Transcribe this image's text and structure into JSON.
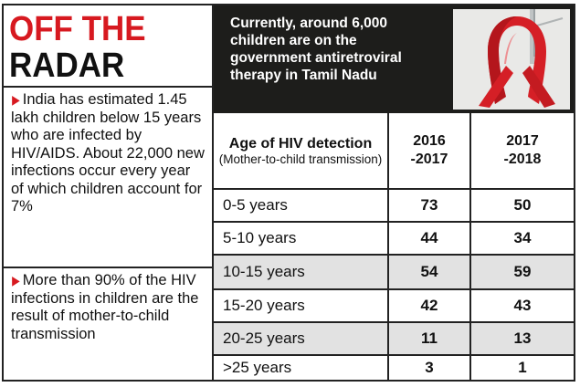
{
  "title": {
    "line1": "OFF THE",
    "line2": "RADAR"
  },
  "facts": [
    "India has estimated 1.45 lakh children below 15 years who are infected by HIV/AIDS. About 22,000 new infections occur every year of which children account for 7%",
    "More than 90% of the HIV infections in children are the result of mother-to-child transmission"
  ],
  "header": {
    "text": "Currently, around 6,000 children are on the government antiretroviral therapy in Tamil Nadu",
    "image_icon": "red-ribbon-icon"
  },
  "colors": {
    "accent": "#d71920",
    "header_bg": "#1d1d1b",
    "shade": "#e2e2e2"
  },
  "table": {
    "col0_main": "Age of HIV detection",
    "col0_sub": "(Mother-to-child transmission)",
    "col1_line1": "2016",
    "col1_line2": "-2017",
    "col2_line1": "2017",
    "col2_line2": "-2018",
    "rows": [
      {
        "age": "0-5 years",
        "y2016": "73",
        "y2017": "50"
      },
      {
        "age": "5-10 years",
        "y2016": "44",
        "y2017": "34"
      },
      {
        "age": "10-15 years",
        "y2016": "54",
        "y2017": "59"
      },
      {
        "age": "15-20 years",
        "y2016": "42",
        "y2017": "43"
      },
      {
        "age": "20-25 years",
        "y2016": "11",
        "y2017": "13"
      },
      {
        "age": ">25 years",
        "y2016": "3",
        "y2017": "1"
      }
    ]
  }
}
